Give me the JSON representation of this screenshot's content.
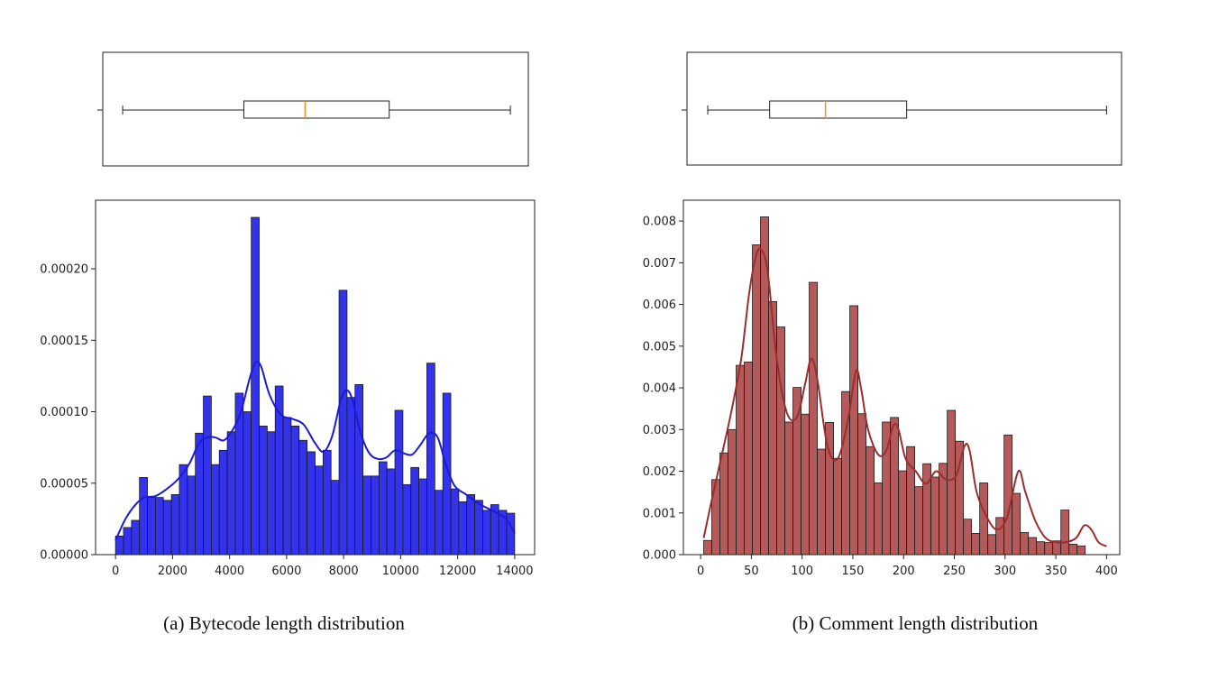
{
  "chart_data": [
    {
      "type": "histogram",
      "caption": "(a) Bytecode length distribution",
      "bar_color": "#3333ee",
      "line_color": "#1a1ad9",
      "x_ticks": [
        0,
        2000,
        4000,
        6000,
        8000,
        10000,
        12000,
        14000
      ],
      "x_tick_labels": [
        "0",
        "2000",
        "4000",
        "6000",
        "8000",
        "10000",
        "12000",
        "14000"
      ],
      "xlim": [
        -700,
        14700
      ],
      "ylim": [
        0,
        0.000248
      ],
      "y_ticks": [
        0,
        5e-05,
        0.0001,
        0.00015,
        0.0002
      ],
      "y_tick_labels": [
        "0.00000",
        "0.00005",
        "0.00010",
        "0.00015",
        "0.00020"
      ],
      "bin_start": 0,
      "bin_width": 280,
      "densities": [
        1.3e-05,
        1.9e-05,
        2.4e-05,
        5.4e-05,
        4e-05,
        4e-05,
        3.8e-05,
        4.2e-05,
        6.3e-05,
        5.5e-05,
        8.5e-05,
        0.000111,
        6.3e-05,
        7.3e-05,
        8.6e-05,
        0.000113,
        0.0001,
        0.000236,
        9e-05,
        8.6e-05,
        0.000118,
        9.6e-05,
        9e-05,
        8e-05,
        7.2e-05,
        6.2e-05,
        7.3e-05,
        5.2e-05,
        0.000185,
        0.00011,
        0.000119,
        5.5e-05,
        5.5e-05,
        6.5e-05,
        6e-05,
        0.000101,
        4.9e-05,
        6.1e-05,
        5.3e-05,
        0.000134,
        4.5e-05,
        0.000113,
        4.6e-05,
        3.7e-05,
        4.2e-05,
        3.8e-05,
        3.1e-05,
        3.5e-05,
        3.1e-05,
        2.9e-05
      ],
      "kde_x": [
        0,
        350,
        700,
        1000,
        1400,
        1800,
        2200,
        2600,
        2900,
        3200,
        3500,
        3800,
        4100,
        4400,
        4700,
        4900,
        5100,
        5400,
        5800,
        6200,
        6600,
        7000,
        7300,
        7600,
        7900,
        8100,
        8300,
        8600,
        8900,
        9200,
        9500,
        9800,
        10100,
        10400,
        10700,
        11000,
        11300,
        11600,
        11900,
        12300,
        12800,
        13300,
        13700,
        14000
      ],
      "kde_y": [
        1e-05,
        2.5e-05,
        3.5e-05,
        4e-05,
        4.1e-05,
        4.6e-05,
        5.3e-05,
        6.4e-05,
        7.7e-05,
        8.2e-05,
        8.2e-05,
        8e-05,
        8.7e-05,
        0.0001,
        0.000123,
        0.000134,
        0.000132,
        0.000112,
        9.8e-05,
        9.5e-05,
        9.1e-05,
        7.8e-05,
        7.2e-05,
        8.3e-05,
        0.000108,
        0.000115,
        0.000109,
        8.5e-05,
        7.1e-05,
        6.7e-05,
        6.8e-05,
        7.3e-05,
        7.1e-05,
        7e-05,
        7.7e-05,
        8.5e-05,
        8.2e-05,
        6.2e-05,
        4.8e-05,
        4.2e-05,
        3.5e-05,
        3e-05,
        2.5e-05,
        1.5e-05
      ],
      "box": {
        "whisker_low": 250,
        "q1": 4500,
        "median": 6650,
        "q3": 9600,
        "whisker_high": 13850,
        "median_color": "#f28e2b"
      }
    },
    {
      "type": "histogram",
      "caption": "(b) Comment length distribution",
      "bar_color": "#b55a5a",
      "line_color": "#9b2d2d",
      "x_ticks": [
        0,
        50,
        100,
        150,
        200,
        250,
        300,
        350,
        400
      ],
      "x_tick_labels": [
        "0",
        "50",
        "100",
        "150",
        "200",
        "250",
        "300",
        "350",
        "400"
      ],
      "xlim": [
        -17,
        413
      ],
      "ylim": [
        0,
        0.0085
      ],
      "y_ticks": [
        0,
        0.001,
        0.002,
        0.003,
        0.004,
        0.005,
        0.006,
        0.007,
        0.008
      ],
      "y_tick_labels": [
        "0.000",
        "0.001",
        "0.002",
        "0.003",
        "0.004",
        "0.005",
        "0.006",
        "0.007",
        "0.008"
      ],
      "bin_start": 3,
      "bin_width": 8,
      "densities": [
        0.00034,
        0.0018,
        0.00244,
        0.003,
        0.00454,
        0.00462,
        0.00743,
        0.0081,
        0.00607,
        0.00546,
        0.00318,
        0.00401,
        0.00337,
        0.00653,
        0.00253,
        0.00317,
        0.00231,
        0.00391,
        0.00597,
        0.00338,
        0.00259,
        0.00172,
        0.00318,
        0.00329,
        0.00201,
        0.00259,
        0.00163,
        0.00218,
        0.00186,
        0.00219,
        0.00346,
        0.00272,
        0.00085,
        0.00051,
        0.00172,
        0.00048,
        0.00089,
        0.00287,
        0.00147,
        0.00053,
        0.00041,
        0.00031,
        0.00029,
        0.00033,
        0.00107,
        0.00025,
        0.00021
      ],
      "kde_x": [
        3,
        10,
        20,
        30,
        40,
        48,
        55,
        60,
        66,
        75,
        85,
        95,
        103,
        109,
        115,
        125,
        135,
        145,
        153,
        158,
        165,
        175,
        183,
        190,
        195,
        202,
        212,
        222,
        232,
        242,
        252,
        260,
        265,
        272,
        282,
        292,
        302,
        313,
        320,
        330,
        340,
        350,
        360,
        370,
        378,
        385,
        392,
        400
      ],
      "kde_y": [
        0.0004,
        0.0012,
        0.0023,
        0.0034,
        0.0047,
        0.0063,
        0.0072,
        0.0073,
        0.0068,
        0.0047,
        0.0034,
        0.0033,
        0.0041,
        0.0047,
        0.0042,
        0.0026,
        0.0023,
        0.0032,
        0.0044,
        0.004,
        0.003,
        0.0024,
        0.0025,
        0.0031,
        0.003,
        0.0023,
        0.002,
        0.0017,
        0.002,
        0.0018,
        0.0019,
        0.0026,
        0.0025,
        0.0015,
        0.0009,
        0.0006,
        0.0009,
        0.002,
        0.0015,
        0.0008,
        0.0004,
        0.0003,
        0.0003,
        0.0004,
        0.0007,
        0.0006,
        0.0003,
        0.0002
      ],
      "box": {
        "whisker_low": 7,
        "q1": 68,
        "median": 123,
        "q3": 203,
        "whisker_high": 400,
        "median_color": "#f28e2b"
      }
    }
  ]
}
